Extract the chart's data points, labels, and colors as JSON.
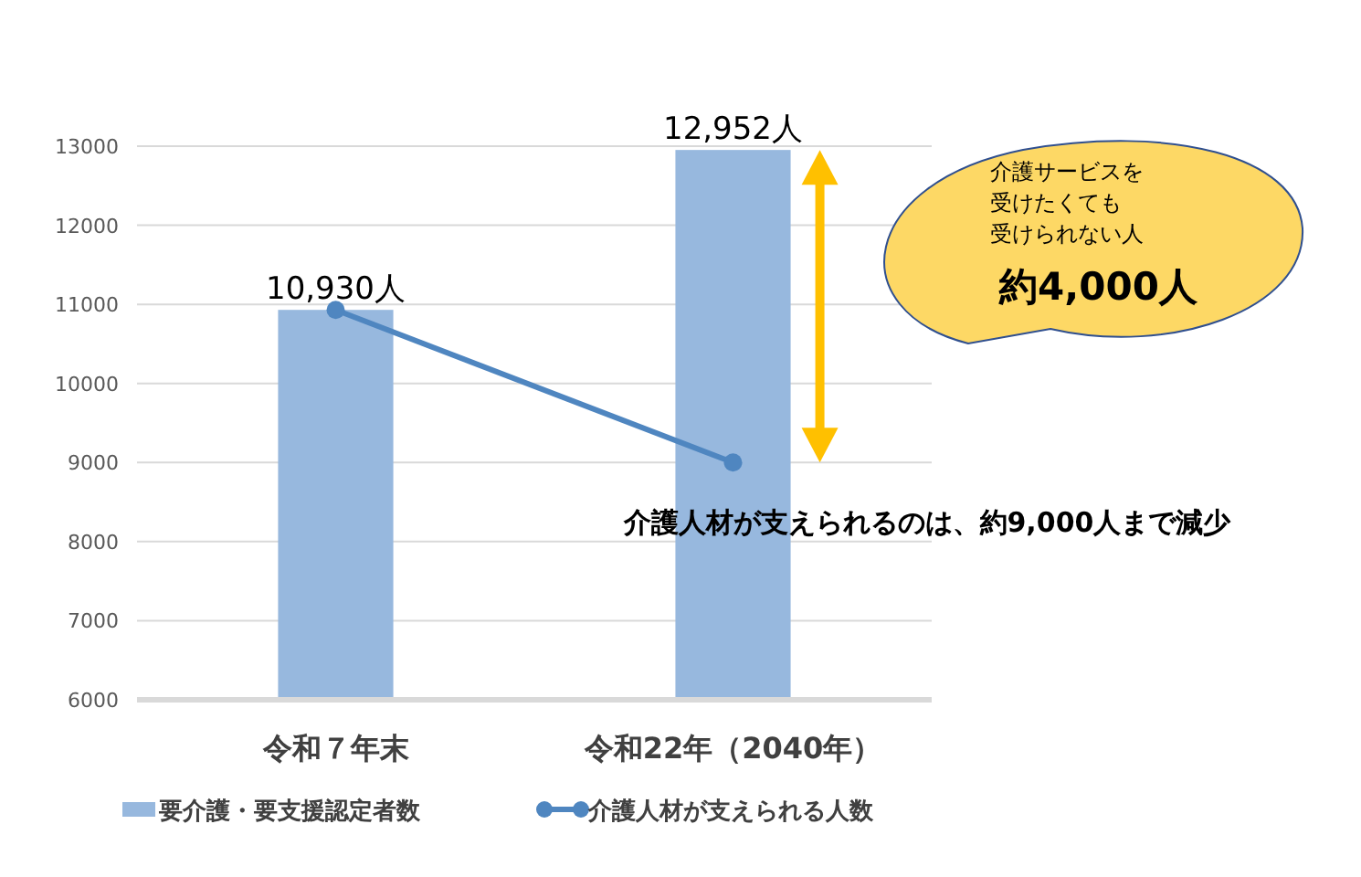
{
  "chart_data": {
    "type": "bar",
    "categories": [
      "令和７年末",
      "令和22年（2040年）"
    ],
    "series": [
      {
        "name": "要介護・要支援認定者数",
        "color": "#97b8de",
        "values": [
          10930,
          12952
        ],
        "value_labels": [
          "10,930人",
          "12,952人"
        ]
      },
      {
        "name": "介護人材が支えられる人数",
        "type": "line",
        "color": "#4f86c0",
        "values": [
          10930,
          9000
        ],
        "marker": "circle"
      }
    ],
    "ylim": [
      6000,
      13000
    ],
    "yticks": [
      6000,
      7000,
      8000,
      9000,
      10000,
      11000,
      12000,
      13000
    ],
    "grid": "y",
    "legend": "bottom",
    "annotations": [
      {
        "text": "介護人材が支えられるのは、約9,000人まで減少",
        "x": "令和22年（2040年）",
        "y": 9000
      },
      "介護サービスを",
      "受けたくても",
      "受けられない人",
      "約4,000人"
    ]
  }
}
